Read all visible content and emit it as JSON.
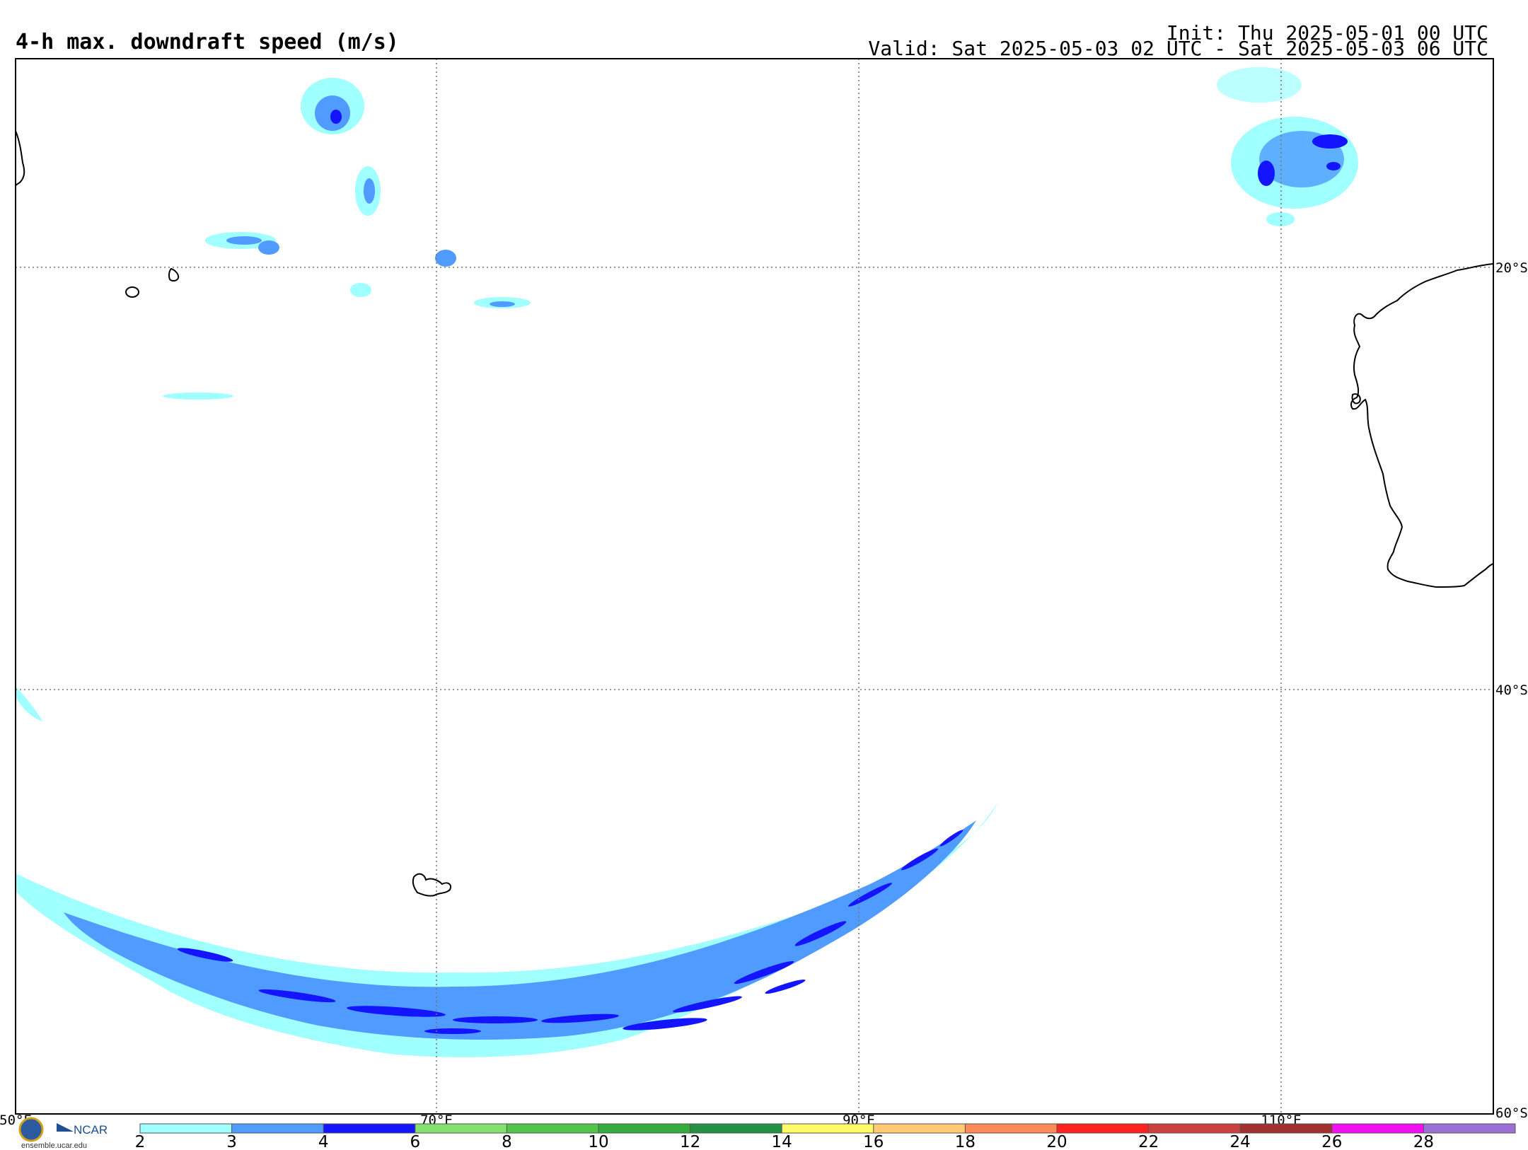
{
  "header": {
    "title": "4-h max. downdraft speed (m/s)",
    "init": "Init: Thu 2025-05-01 00 UTC",
    "valid": "Valid: Sat 2025-05-03 02 UTC - Sat 2025-05-03 06 UTC"
  },
  "map": {
    "projection": "regional lat-lon",
    "lon_range": [
      50,
      120
    ],
    "lat_range": [
      -10,
      -60
    ],
    "lat_labels": [
      "20°S",
      "40°S",
      "60°S"
    ],
    "lon_labels": [
      "50°E",
      "70°E",
      "90°E",
      "110°E"
    ],
    "land_features": [
      "Madagascar coast",
      "Mauritius",
      "Reunion",
      "Kerguelen Islands",
      "Western Australia coast"
    ]
  },
  "colorbar": {
    "ticks": [
      "2",
      "3",
      "4",
      "6",
      "8",
      "10",
      "12",
      "14",
      "16",
      "18",
      "20",
      "22",
      "24",
      "26",
      "28"
    ],
    "colors": [
      "#a0ffff",
      "#4f9bff",
      "#1414ff",
      "#83e06b",
      "#51c548",
      "#34ac3d",
      "#239045",
      "#fffb66",
      "#ffca72",
      "#ff8a58",
      "#ff2020",
      "#cd4040",
      "#a23030",
      "#f010f0",
      "#9a6fd6"
    ]
  },
  "footer": {
    "logo_text": "NCAR",
    "url": "ensemble.ucar.edu"
  }
}
